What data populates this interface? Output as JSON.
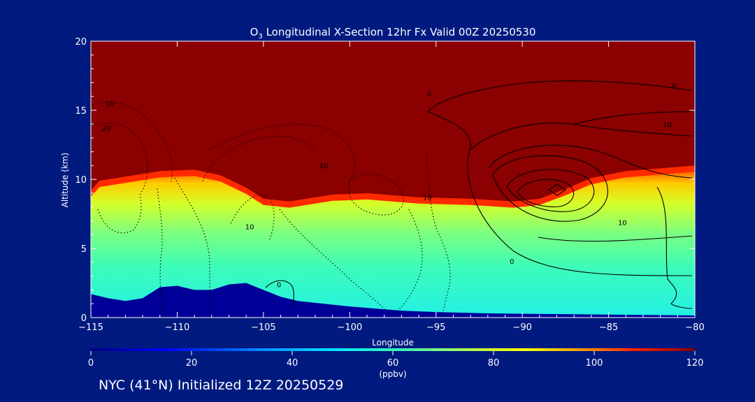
{
  "chart_data": {
    "type": "heatmap",
    "title": {
      "prefix": "O",
      "subscript": "3",
      "text": " Longitudinal X-Section 12hr  Fx Valid 00Z 20250530"
    },
    "xlabel": "Longitude",
    "ylabel": "Altitude (km)",
    "xlim": [
      -115,
      -80
    ],
    "ylim": [
      0,
      20
    ],
    "x_ticks": [
      -115,
      -110,
      -105,
      -100,
      -95,
      -90,
      -85,
      -80
    ],
    "x_tick_labels": [
      "−115",
      "−110",
      "−105",
      "−100",
      "−95",
      "−90",
      "−85",
      "−80"
    ],
    "y_ticks": [
      0,
      5,
      10,
      15,
      20
    ],
    "y_tick_labels": [
      "0",
      "5",
      "10",
      "15",
      "20"
    ],
    "colorbar": {
      "min": 0,
      "max": 120,
      "ticks": [
        0,
        20,
        40,
        60,
        80,
        100,
        120
      ],
      "tick_labels": [
        "0",
        "20",
        "40",
        "60",
        "80",
        "100",
        "120"
      ],
      "unit_label": "(ppbv)",
      "colormap": "rainbow"
    },
    "tropopause_altitude_km": [
      [
        -115,
        9.2
      ],
      [
        -114.5,
        9.9
      ],
      [
        -113,
        10.2
      ],
      [
        -111,
        10.6
      ],
      [
        -109,
        10.7
      ],
      [
        -107.5,
        10.3
      ],
      [
        -106,
        9.4
      ],
      [
        -105,
        8.6
      ],
      [
        -103.5,
        8.4
      ],
      [
        -101,
        8.9
      ],
      [
        -99,
        9.0
      ],
      [
        -96,
        8.7
      ],
      [
        -93,
        8.6
      ],
      [
        -90.5,
        8.4
      ],
      [
        -89,
        8.6
      ],
      [
        -87.5,
        9.3
      ],
      [
        -86,
        10.1
      ],
      [
        -84,
        10.6
      ],
      [
        -80,
        11.0
      ]
    ],
    "terrain_altitude_km": [
      [
        -115,
        1.7
      ],
      [
        -114,
        1.4
      ],
      [
        -113,
        1.2
      ],
      [
        -112,
        1.4
      ],
      [
        -111,
        2.2
      ],
      [
        -110,
        2.3
      ],
      [
        -109,
        2.0
      ],
      [
        -108,
        2.0
      ],
      [
        -107,
        2.4
      ],
      [
        -106,
        2.5
      ],
      [
        -105,
        2.0
      ],
      [
        -104,
        1.5
      ],
      [
        -103,
        1.2
      ],
      [
        -100,
        0.8
      ],
      [
        -97,
        0.5
      ],
      [
        -95,
        0.4
      ],
      [
        -92,
        0.3
      ],
      [
        -88,
        0.25
      ],
      [
        -84,
        0.2
      ],
      [
        -80,
        0.15
      ]
    ],
    "contour_labels": [
      {
        "x": -113.9,
        "y": 15.3,
        "text": "10"
      },
      {
        "x": -114.1,
        "y": 13.5,
        "text": "20"
      },
      {
        "x": -101.5,
        "y": 10.8,
        "text": "10"
      },
      {
        "x": -105.8,
        "y": 6.4,
        "text": "10"
      },
      {
        "x": -95.5,
        "y": 8.5,
        "text": "10"
      },
      {
        "x": -95.4,
        "y": 16.0,
        "text": "0"
      },
      {
        "x": -81.2,
        "y": 16.6,
        "text": "0"
      },
      {
        "x": -81.6,
        "y": 13.8,
        "text": "10"
      },
      {
        "x": -84.2,
        "y": 6.7,
        "text": "10"
      },
      {
        "x": -90.6,
        "y": 3.9,
        "text": "0"
      },
      {
        "x": -104.1,
        "y": 2.2,
        "text": "0"
      }
    ]
  },
  "footer": {
    "text": "NYC (41°N) Initialized 12Z 20250529"
  }
}
